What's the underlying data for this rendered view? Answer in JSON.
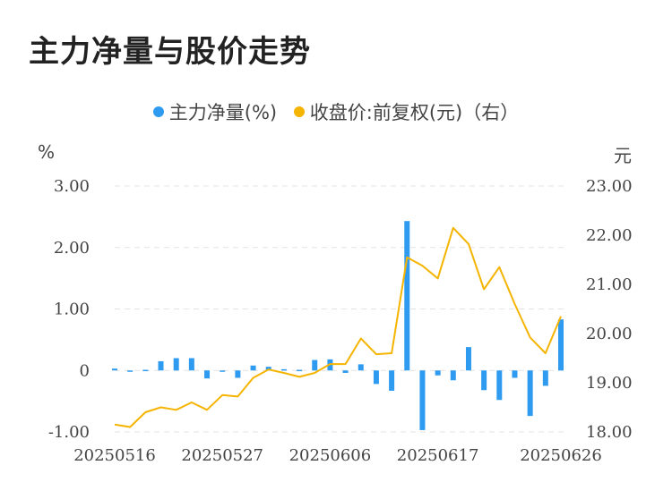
{
  "title": "主力净量与股价走势",
  "legend": {
    "left_label": "主力净量(%)",
    "right_label": "收盘价:前复权(元)（右）"
  },
  "colors": {
    "bar": "#2e9bf0",
    "line": "#f4b400",
    "grid": "#e3e3e3"
  },
  "chart_data": {
    "type": "bar",
    "left_axis": {
      "unit": "%",
      "ylim": [
        -1.0,
        3.0
      ],
      "ticks": [
        "3.00",
        "2.00",
        "1.00",
        "0",
        "-1.00"
      ],
      "tick_values": [
        3,
        2,
        1,
        0,
        -1
      ]
    },
    "right_axis": {
      "unit": "元",
      "ylim": [
        18.0,
        23.0
      ],
      "ticks": [
        "23.00",
        "22.00",
        "21.00",
        "20.00",
        "19.00",
        "18.00"
      ],
      "tick_values": [
        23,
        22,
        21,
        20,
        19,
        18
      ]
    },
    "x_tick_labels": [
      "20250516",
      "20250527",
      "20250606",
      "20250617",
      "20250626"
    ],
    "x_tick_positions": [
      0,
      7,
      14,
      21,
      29
    ],
    "grid": true,
    "legend_position": "top",
    "series": [
      {
        "name": "主力净量(%)",
        "type": "bar",
        "axis": "left",
        "values": [
          0.03,
          -0.01,
          0.01,
          0.15,
          0.2,
          0.2,
          -0.13,
          0.0,
          -0.12,
          0.08,
          0.06,
          0.02,
          0.01,
          0.17,
          0.18,
          -0.04,
          0.1,
          -0.22,
          -0.33,
          2.43,
          -0.97,
          -0.08,
          -0.16,
          0.38,
          -0.32,
          -0.48,
          -0.12,
          -0.74,
          -0.25,
          0.83
        ]
      },
      {
        "name": "收盘价:前复权(元)（右）",
        "type": "line",
        "axis": "right",
        "values": [
          18.15,
          18.1,
          18.4,
          18.5,
          18.45,
          18.6,
          18.45,
          18.75,
          18.72,
          19.1,
          19.27,
          19.2,
          19.12,
          19.2,
          19.38,
          19.38,
          19.9,
          19.58,
          19.6,
          21.55,
          21.38,
          21.12,
          22.15,
          21.82,
          20.9,
          21.35,
          20.6,
          19.92,
          19.6,
          20.35
        ]
      }
    ]
  }
}
